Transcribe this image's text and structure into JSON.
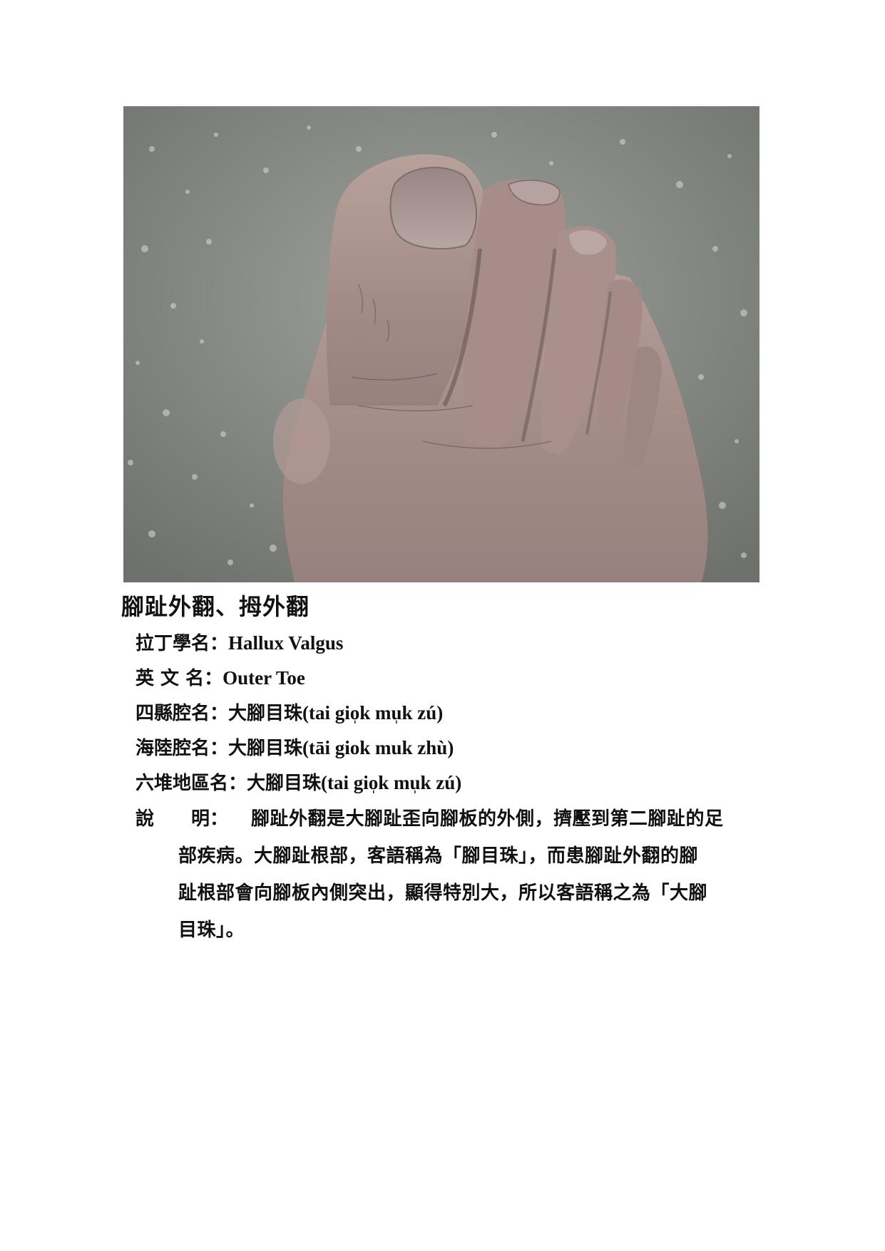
{
  "title": "腳趾外翻、拇外翻",
  "fields": {
    "latin": {
      "label": "拉丁學名：",
      "value": "Hallux Valgus"
    },
    "english": {
      "label": "英 文 名：",
      "value": "Outer Toe"
    },
    "sixian": {
      "label": "四縣腔名：",
      "value_han": "大腳目珠",
      "value_roman": "(tai gio̩k mu̩k zú)"
    },
    "hailu": {
      "label": "海陸腔名：",
      "value_han": "大腳目珠",
      "value_roman": "(tāi giok muk zhù)"
    },
    "liudui": {
      "label": "六堆地區名：",
      "value_han": "大腳目珠",
      "value_roman": "(tai gio̩k mu̩k zú)"
    }
  },
  "description": {
    "label": "說　　明：",
    "lines": [
      "腳趾外翻是大腳趾歪向腳板的外側，擠壓到第二腳趾的足",
      "部疾病。大腳趾根部，客語稱為「腳目珠」，而患腳趾外翻的腳",
      "趾根部會向腳板內側突出，顯得特別大，所以客語稱之為「大腳",
      "目珠」。"
    ]
  }
}
